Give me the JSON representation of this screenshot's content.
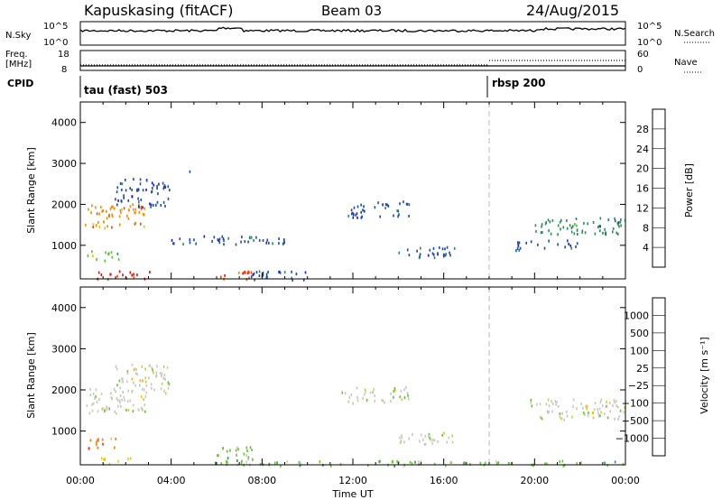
{
  "header": {
    "station": "Kapuskasing (fitACF)",
    "beam": "Beam 03",
    "date": "24/Aug/2015"
  },
  "noise_panel": {
    "left_label": "N.Sky",
    "right_label": "N.Search",
    "left_ticks": [
      "10^5",
      "10^0"
    ],
    "right_ticks": [
      "10^5",
      "10^0"
    ]
  },
  "freq_panel": {
    "left_label_line1": "Freq.",
    "left_label_line2": "[MHz]",
    "right_label": "Nave",
    "left_ticks": [
      "18",
      "8"
    ],
    "right_ticks": [
      "60",
      "0"
    ]
  },
  "cpid": {
    "label": "CPID",
    "programs": [
      {
        "name": "tau (fast) 503",
        "start_hour": 0
      },
      {
        "name": "rbsp 200",
        "start_hour": 18
      }
    ]
  },
  "power_panel": {
    "ylabel": "Slant Range [km]",
    "yticks": [
      "1000",
      "2000",
      "3000",
      "4000"
    ],
    "colorbar_label": "Power [dB]",
    "colorbar_ticks": [
      "4",
      "8",
      "12",
      "16",
      "20",
      "24",
      "28"
    ],
    "colors": [
      "#1a1ad8",
      "#1e4aa6",
      "#2d8a5a",
      "#56c232",
      "#e8c419",
      "#f08a12",
      "#e84a10",
      "#e01010"
    ]
  },
  "velocity_panel": {
    "ylabel": "Slant Range [km]",
    "yticks": [
      "1000",
      "2000",
      "3000",
      "4000"
    ],
    "colorbar_label": "Velocity [m s⁻¹]",
    "colorbar_ticks": [
      "1000",
      "500",
      "100",
      "25",
      "−25",
      "−100",
      "−500",
      "−1000"
    ],
    "colors": [
      "#2a3cc8",
      "#2e6a9c",
      "#3b8c52",
      "#6ac230",
      "#c8c8c0",
      "#ecc21a",
      "#f08012",
      "#e83010",
      "#e01010"
    ]
  },
  "xaxis": {
    "label": "Time UT",
    "ticks": [
      "00:00",
      "04:00",
      "08:00",
      "12:00",
      "16:00",
      "20:00",
      "00:00"
    ]
  },
  "chart_data": {
    "type": "heatmap",
    "x_unit": "hours UT",
    "xlim": [
      0,
      24
    ],
    "ylim": [
      180,
      4500
    ],
    "power_regions": [
      {
        "t0": 0.2,
        "t1": 2.9,
        "r0": 1450,
        "r1": 2050,
        "level": 5
      },
      {
        "t0": 1.5,
        "t1": 3.9,
        "r0": 1950,
        "r1": 2650,
        "level": 1
      },
      {
        "t0": 0.3,
        "t1": 1.7,
        "r0": 650,
        "r1": 900,
        "level": 3
      },
      {
        "t0": 0.7,
        "t1": 3.1,
        "r0": 200,
        "r1": 400,
        "level": 7
      },
      {
        "t0": 4.5,
        "t1": 4.9,
        "r0": 2700,
        "r1": 2900,
        "level": 1
      },
      {
        "t0": 6.0,
        "t1": 7.6,
        "r0": 200,
        "r1": 450,
        "level": 6
      },
      {
        "t0": 4.0,
        "t1": 9.0,
        "r0": 1050,
        "r1": 1250,
        "level": 1
      },
      {
        "t0": 7.5,
        "t1": 10.0,
        "r0": 180,
        "r1": 400,
        "level": 1
      },
      {
        "t0": 11.5,
        "t1": 14.5,
        "r0": 1700,
        "r1": 2100,
        "level": 1
      },
      {
        "t0": 14.0,
        "t1": 16.5,
        "r0": 700,
        "r1": 1000,
        "level": 1
      },
      {
        "t0": 20.0,
        "t1": 24.0,
        "r0": 1300,
        "r1": 1700,
        "level": 2
      },
      {
        "t0": 19.0,
        "t1": 22.0,
        "r0": 900,
        "r1": 1150,
        "level": 1
      }
    ],
    "velocity_regions": [
      {
        "t0": 0.2,
        "t1": 2.9,
        "r0": 1450,
        "r1": 2050,
        "level": 4
      },
      {
        "t0": 1.5,
        "t1": 3.9,
        "r0": 1950,
        "r1": 2650,
        "level": 4
      },
      {
        "t0": 0.3,
        "t1": 1.6,
        "r0": 600,
        "r1": 850,
        "level": 6
      },
      {
        "t0": 0.9,
        "t1": 2.2,
        "r0": 200,
        "r1": 380,
        "level": 5
      },
      {
        "t0": 5.8,
        "t1": 8.0,
        "r0": 200,
        "r1": 650,
        "level": 3
      },
      {
        "t0": 11.5,
        "t1": 14.5,
        "r0": 1700,
        "r1": 2100,
        "level": 4
      },
      {
        "t0": 14.0,
        "t1": 16.5,
        "r0": 700,
        "r1": 1000,
        "level": 4
      },
      {
        "t0": 19.8,
        "t1": 24.0,
        "r0": 1300,
        "r1": 1800,
        "level": 4
      },
      {
        "t0": 8.0,
        "t1": 24.0,
        "r0": 180,
        "r1": 300,
        "level": 3
      }
    ]
  }
}
